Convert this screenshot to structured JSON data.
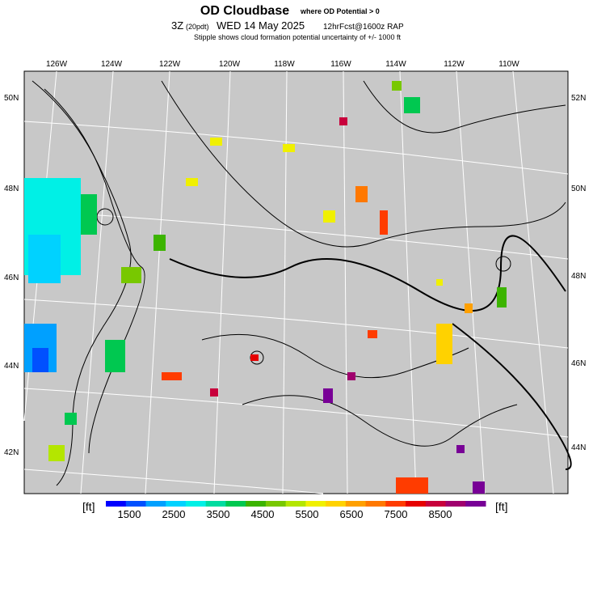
{
  "title": {
    "main": "OD Cloudbase",
    "note": "where OD Potential > 0"
  },
  "subtitle": {
    "time": "3Z",
    "tz": "(20pdt)",
    "date": "WED 14 May 2025",
    "forecast": "12hrFcst@1600z RAP"
  },
  "stipple_note": "Stipple shows cloud formation potential uncertainty of +/- 1000 ft",
  "lon_labels": [
    "126W",
    "124W",
    "122W",
    "120W",
    "118W",
    "116W",
    "114W",
    "112W",
    "110W"
  ],
  "lat_labels_left": [
    "50N",
    "48N",
    "46N",
    "44N",
    "42N"
  ],
  "lat_labels_right": [
    "52N",
    "50N",
    "48N",
    "46N",
    "44N"
  ],
  "colorbar": {
    "unit_left": "[ft]",
    "unit_right": "[ft]",
    "labels": [
      "1500",
      "2500",
      "3500",
      "4500",
      "5500",
      "6500",
      "7500",
      "8500"
    ],
    "colors": [
      "#0000ff",
      "#0050ff",
      "#00a0ff",
      "#00d2ff",
      "#00f0e6",
      "#00dca0",
      "#00c850",
      "#3cb400",
      "#78c800",
      "#b4e600",
      "#f0f000",
      "#ffd200",
      "#ffa000",
      "#ff7800",
      "#ff3c00",
      "#e60000",
      "#c8003c",
      "#a0006e",
      "#780096"
    ]
  }
}
